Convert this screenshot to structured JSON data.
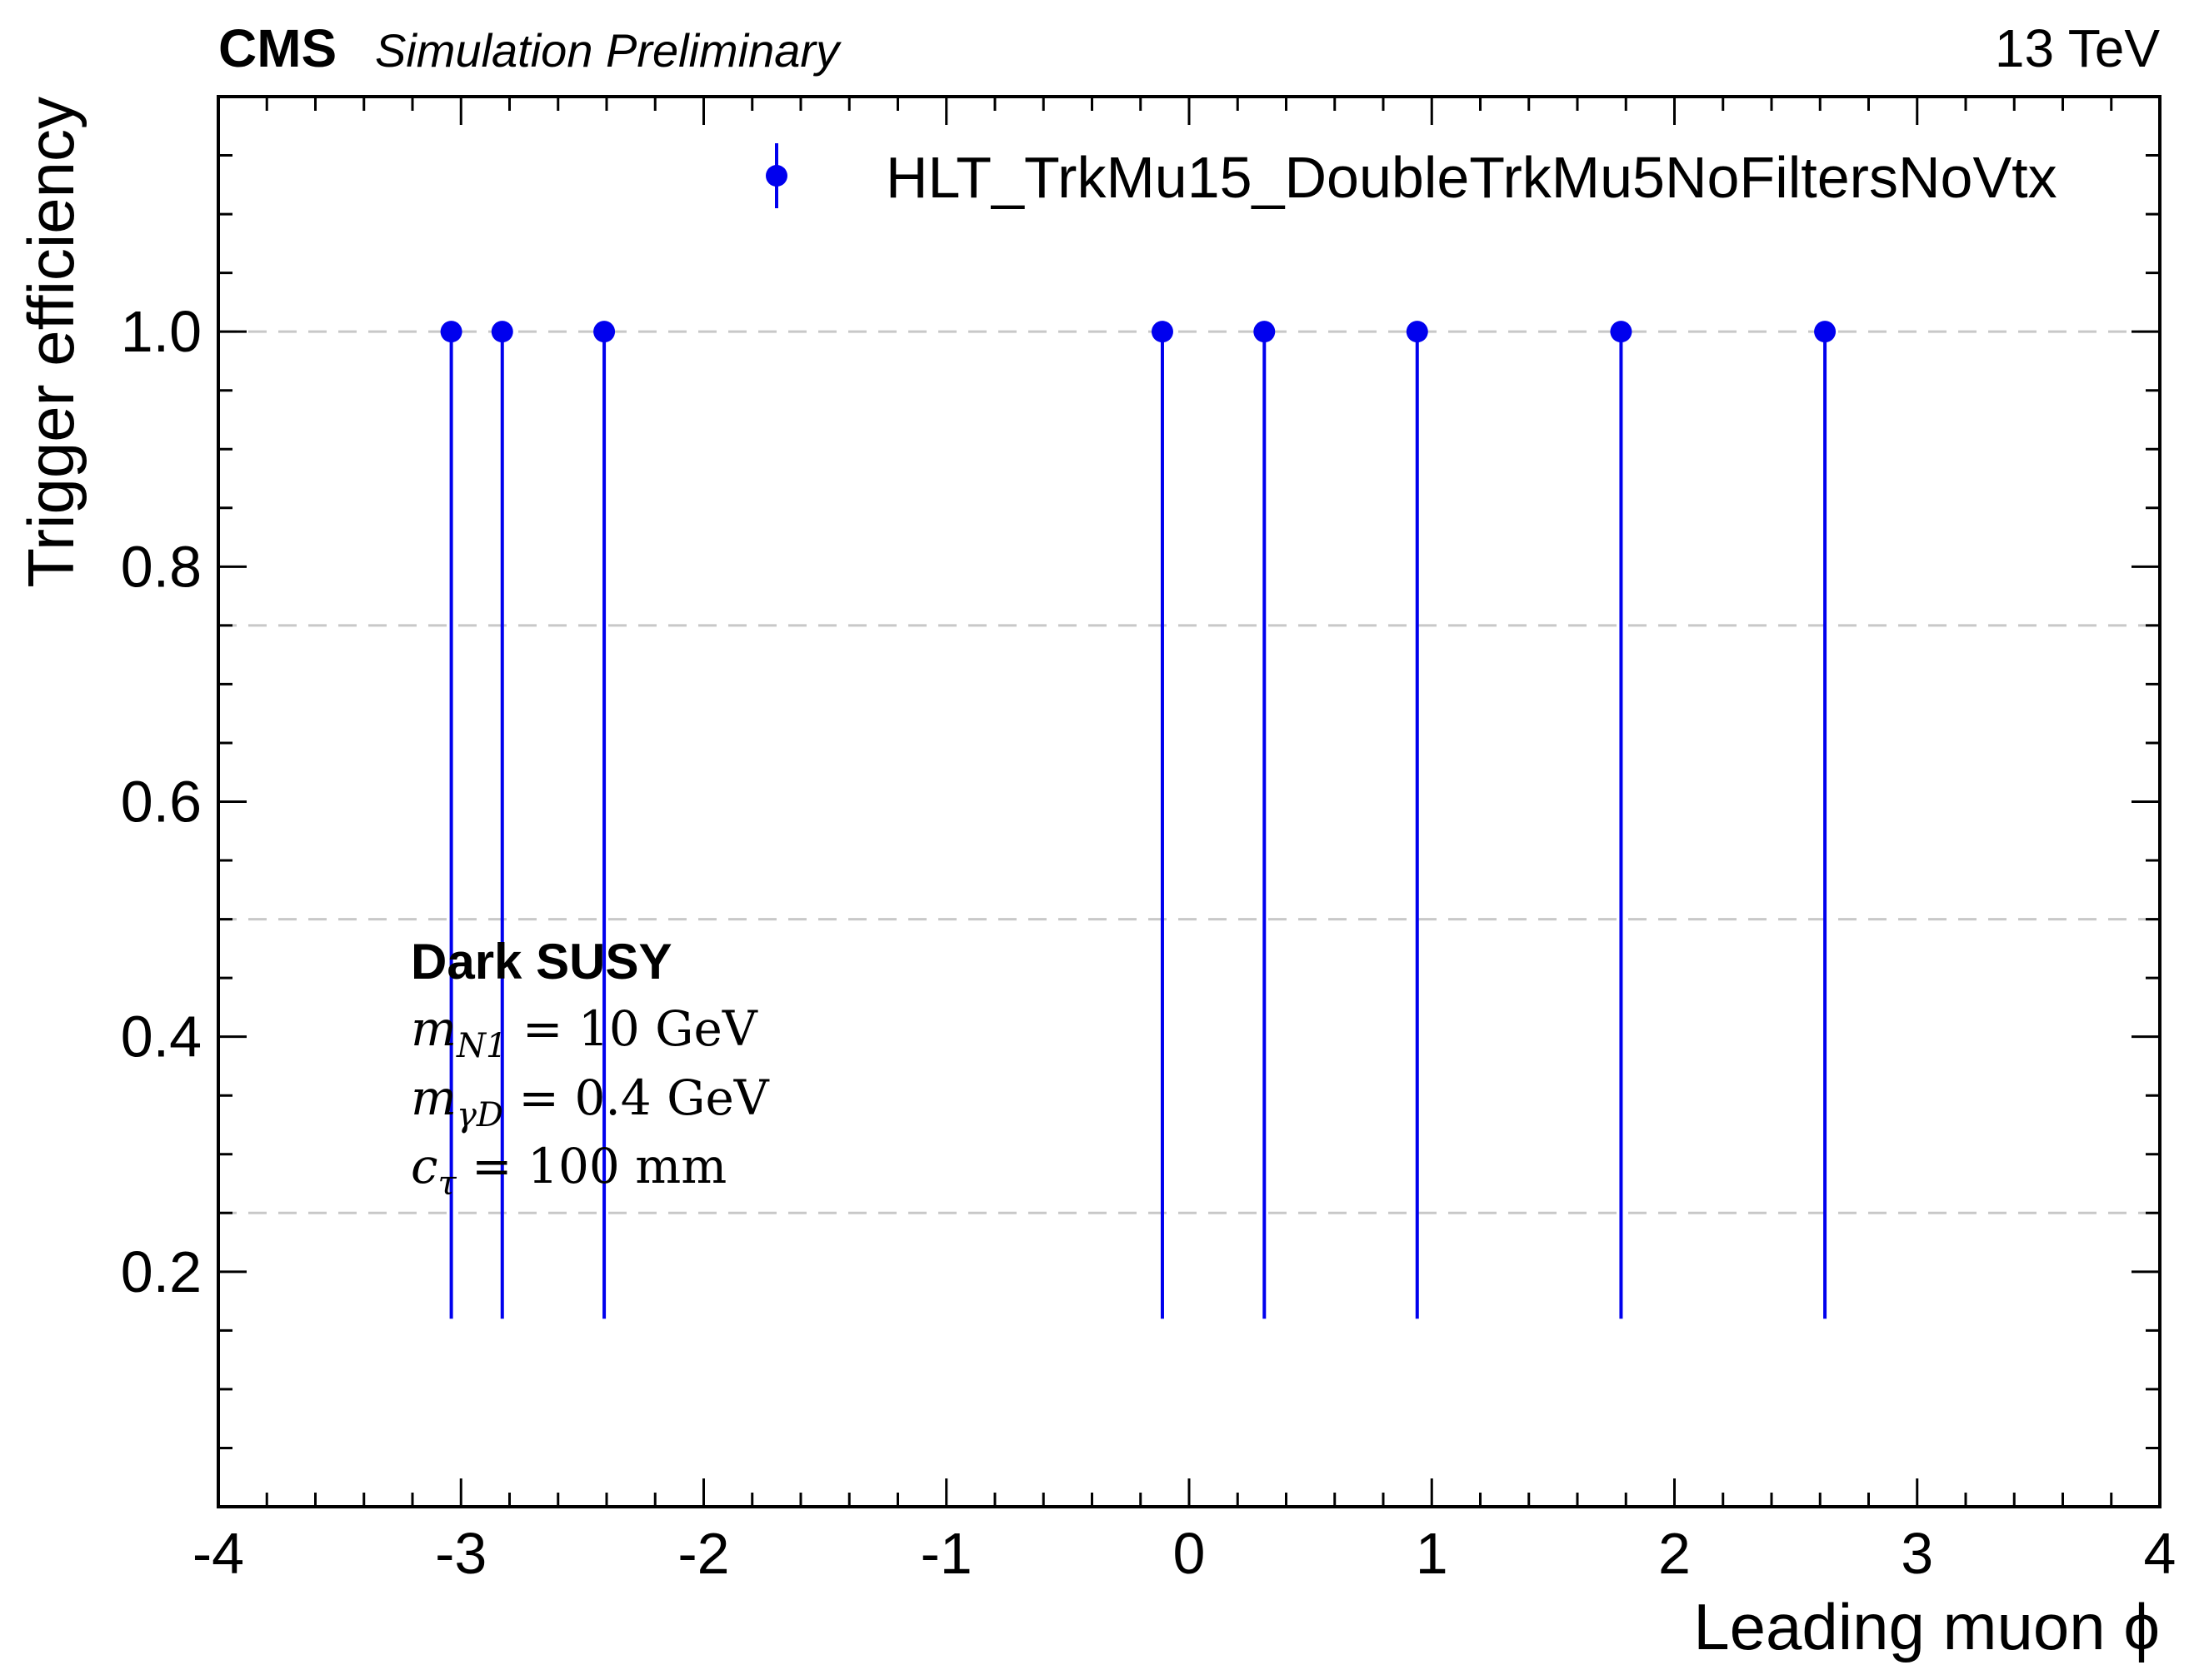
{
  "header": {
    "experiment": "CMS",
    "status": "Simulation Preliminary",
    "energy": "13 TeV"
  },
  "annotation": {
    "title": "Dark SUSY",
    "line1": {
      "sym": "m",
      "sub": "N1",
      "rest": " = 10 GeV"
    },
    "line2": {
      "sym": "m",
      "sub": "γD",
      "rest": " = 0.4 GeV"
    },
    "line3": {
      "sym": "c",
      "sub": "τ",
      "rest": " = 100 mm"
    }
  },
  "chart_data": {
    "type": "scatter",
    "xlabel": "Leading muon ϕ",
    "ylabel": "Trigger efficiency",
    "xlim": [
      -4,
      4
    ],
    "ylim": [
      0,
      1.2
    ],
    "x_ticks": [
      "-4",
      "-3",
      "-2",
      "-1",
      "0",
      "1",
      "2",
      "3",
      "4"
    ],
    "y_ticks": [
      "0.2",
      "0.4",
      "0.6",
      "0.8",
      "1.0"
    ],
    "grid": {
      "y_dashed": [
        0.25,
        0.5,
        0.75,
        1.0
      ]
    },
    "legend": {
      "placement": "top-right"
    },
    "series": [
      {
        "name": "HLT_TrkMu15_DoubleTrkMu5NoFiltersNoVtx",
        "color": "#0000ee",
        "x": [
          -3.04,
          -2.83,
          -2.41,
          -0.11,
          0.31,
          0.94,
          1.78,
          2.62
        ],
        "y": [
          1.0,
          1.0,
          1.0,
          1.0,
          1.0,
          1.0,
          1.0,
          1.0
        ],
        "yerr_low": [
          0.84,
          0.84,
          0.84,
          0.84,
          0.84,
          0.84,
          0.84,
          0.84
        ],
        "yerr_high": [
          0,
          0,
          0,
          0,
          0,
          0,
          0,
          0
        ]
      }
    ]
  }
}
